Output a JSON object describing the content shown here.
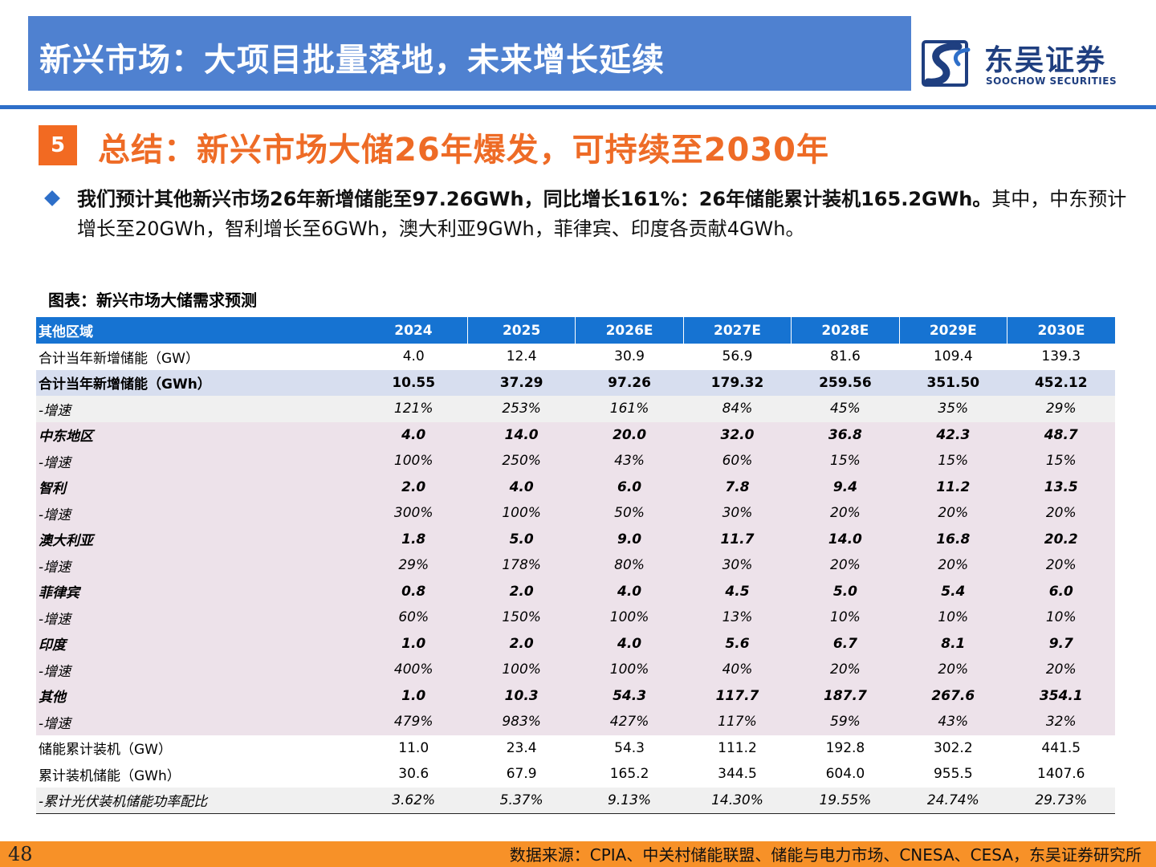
{
  "header": {
    "title": "新兴市场：大项目批量落地，未来增长延续",
    "logo_cn": "东吴证券",
    "logo_en": "SOOCHOW SECURITIES",
    "logo_color": "#1f3f80",
    "accent": "#4f81d0"
  },
  "section": {
    "number": "5",
    "title": "总结：新兴市场大储26年爆发，可持续至2030年",
    "color": "#ee6b26"
  },
  "bullet": {
    "icon": "diamond-bullet-icon",
    "bold_text": "我们预计其他新兴市场26年新增储能至97.26GWh，同比增长161%：26年储能累计装机165.2GWh。",
    "normal_text": "其中，中东预计增长至20GWh，智利增长至6GWh，澳大利亚9GWh，菲律宾、印度各贡献4GWh。"
  },
  "table": {
    "caption": "图表：新兴市场大储需求预测",
    "header": [
      "其他区域",
      "2024",
      "2025",
      "2026E",
      "2027E",
      "2028E",
      "2029E",
      "2030E"
    ],
    "rows": [
      {
        "style": "plain",
        "cells": [
          "合计当年新增储能（GW）",
          "4.0",
          "12.4",
          "30.9",
          "56.9",
          "81.6",
          "109.4",
          "139.3"
        ]
      },
      {
        "style": "bold-lav",
        "cells": [
          "合计当年新增储能（GWh）",
          "10.55",
          "37.29",
          "97.26",
          "179.32",
          "259.56",
          "351.50",
          "452.12"
        ]
      },
      {
        "style": "grey",
        "cells": [
          "-增速",
          "121%",
          "253%",
          "161%",
          "84%",
          "45%",
          "35%",
          "29%"
        ]
      },
      {
        "style": "rose-b",
        "cells": [
          "中东地区",
          "4.0",
          "14.0",
          "20.0",
          "32.0",
          "36.8",
          "42.3",
          "48.7"
        ]
      },
      {
        "style": "rose-i",
        "cells": [
          "-增速",
          "100%",
          "250%",
          "43%",
          "60%",
          "15%",
          "15%",
          "15%"
        ]
      },
      {
        "style": "rose-b",
        "cells": [
          "智利",
          "2.0",
          "4.0",
          "6.0",
          "7.8",
          "9.4",
          "11.2",
          "13.5"
        ]
      },
      {
        "style": "rose-i",
        "cells": [
          "-增速",
          "300%",
          "100%",
          "50%",
          "30%",
          "20%",
          "20%",
          "20%"
        ]
      },
      {
        "style": "rose-b",
        "cells": [
          "澳大利亚",
          "1.8",
          "5.0",
          "9.0",
          "11.7",
          "14.0",
          "16.8",
          "20.2"
        ]
      },
      {
        "style": "rose-i",
        "cells": [
          "-增速",
          "29%",
          "178%",
          "80%",
          "30%",
          "20%",
          "20%",
          "20%"
        ]
      },
      {
        "style": "rose-b",
        "cells": [
          "菲律宾",
          "0.8",
          "2.0",
          "4.0",
          "4.5",
          "5.0",
          "5.4",
          "6.0"
        ]
      },
      {
        "style": "rose-i",
        "cells": [
          "-增速",
          "60%",
          "150%",
          "100%",
          "13%",
          "10%",
          "10%",
          "10%"
        ]
      },
      {
        "style": "rose-b",
        "cells": [
          "印度",
          "1.0",
          "2.0",
          "4.0",
          "5.6",
          "6.7",
          "8.1",
          "9.7"
        ]
      },
      {
        "style": "rose-i",
        "cells": [
          "-增速",
          "400%",
          "100%",
          "100%",
          "40%",
          "20%",
          "20%",
          "20%"
        ]
      },
      {
        "style": "rose-b",
        "cells": [
          "其他",
          "1.0",
          "10.3",
          "54.3",
          "117.7",
          "187.7",
          "267.6",
          "354.1"
        ]
      },
      {
        "style": "rose-i",
        "cells": [
          "-增速",
          "479%",
          "983%",
          "427%",
          "117%",
          "59%",
          "43%",
          "32%"
        ]
      },
      {
        "style": "plain",
        "cells": [
          "储能累计装机（GW）",
          "11.0",
          "23.4",
          "54.3",
          "111.2",
          "192.8",
          "302.2",
          "441.5"
        ]
      },
      {
        "style": "plain",
        "cells": [
          "累计装机储能（GWh）",
          "30.6",
          "67.9",
          "165.2",
          "344.5",
          "604.0",
          "955.5",
          "1407.6"
        ]
      },
      {
        "style": "grey-last",
        "cells": [
          "-累计光伏装机储能功率配比",
          "3.62%",
          "5.37%",
          "9.13%",
          "14.30%",
          "19.55%",
          "24.74%",
          "29.73%"
        ]
      }
    ]
  },
  "footer": {
    "page_number": "48",
    "source": "数据来源：CPIA、中关村储能联盟、储能与电力市场、CNESA、CESA，东吴证券研究所",
    "bar_color": "#f79128"
  }
}
